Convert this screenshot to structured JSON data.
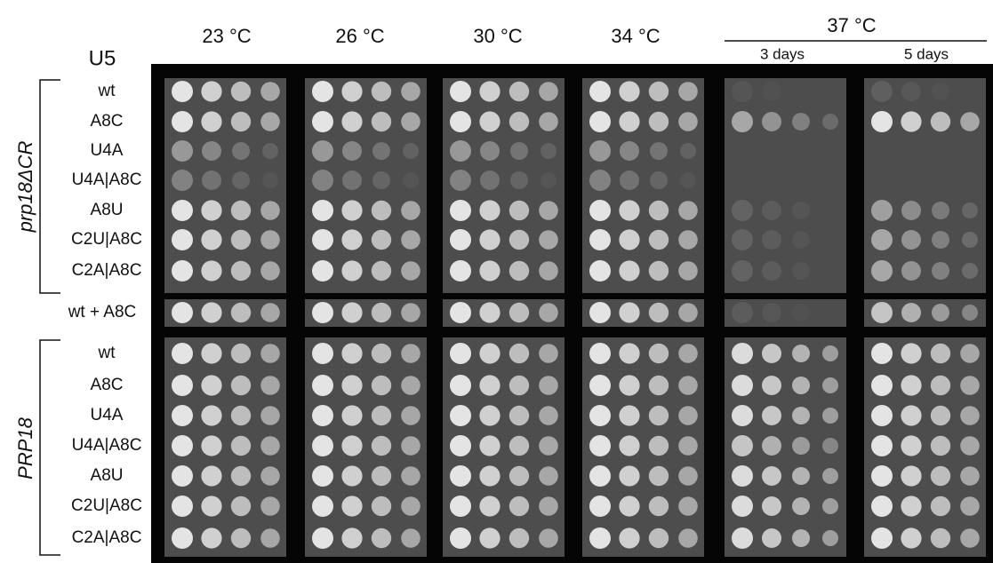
{
  "header": {
    "strain_label": "U5",
    "temperatures": [
      "23 °C",
      "26 °C",
      "30 °C",
      "34 °C",
      "37 °C"
    ],
    "durations": [
      "3 days",
      "5 days"
    ]
  },
  "groups": [
    {
      "label": "prp18ΔCR",
      "rows": [
        "wt",
        "A8C",
        "U4A",
        "U4A|A8C",
        "A8U",
        "C2U|A8C",
        "C2A|A8C"
      ]
    },
    {
      "label": "PRP18",
      "rows": [
        "wt",
        "A8C",
        "U4A",
        "U4A|A8C",
        "A8U",
        "C2U|A8C",
        "C2A|A8C"
      ]
    }
  ],
  "control_row": "wt + A8C"
}
